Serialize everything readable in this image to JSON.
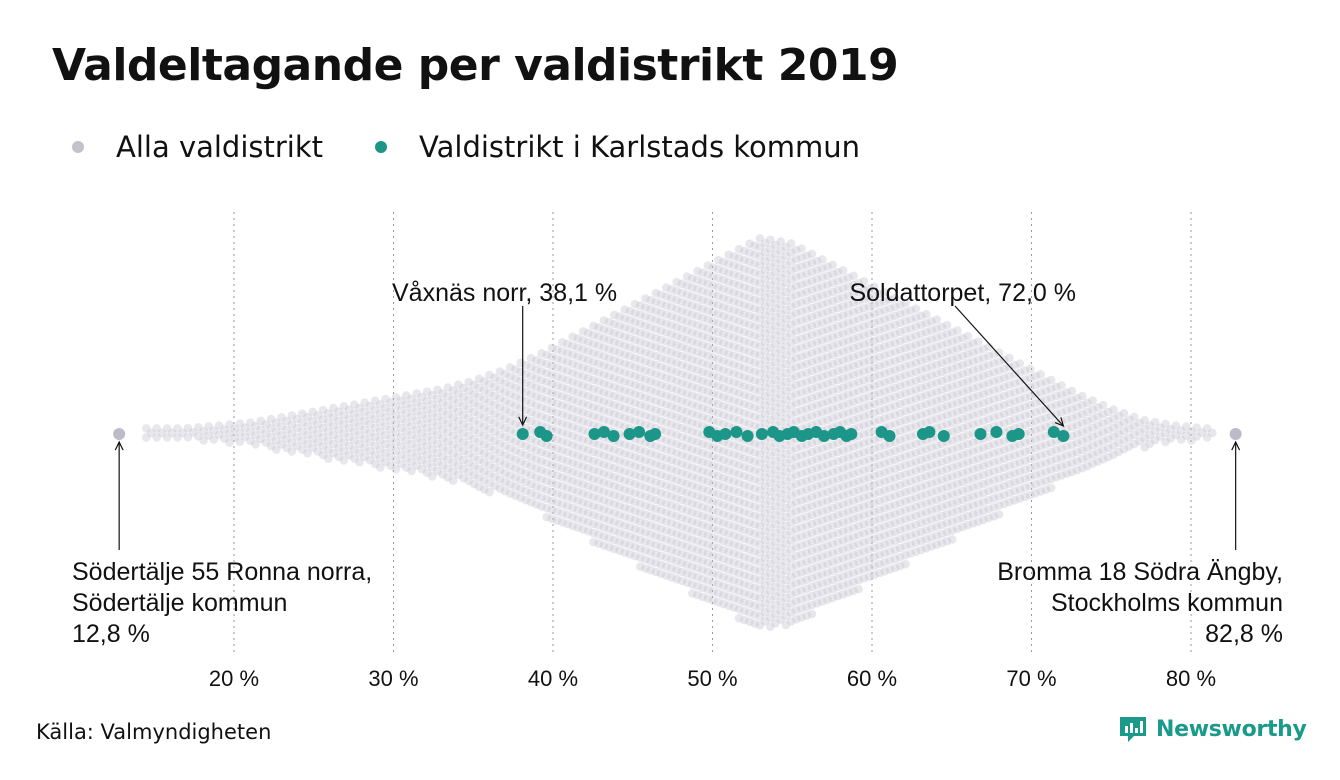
{
  "title": "Valdeltagande per valdistrikt 2019",
  "legend": [
    {
      "label": "Alla valdistrikt",
      "color": "#c3c1cc"
    },
    {
      "label": "Valdistrikt i Karlstads kommun",
      "color": "#1b9688"
    }
  ],
  "source": "Källa: Valmyndigheten",
  "brand": {
    "name": "Newsworthy",
    "color": "#1a9a8a"
  },
  "chart_data": {
    "type": "scatter",
    "subtype": "beeswarm",
    "xlabel": "",
    "ylabel": "",
    "xlim": [
      12,
      83.5
    ],
    "x_ticks": [
      20,
      30,
      40,
      50,
      60,
      70,
      80
    ],
    "x_tick_labels": [
      "20 %",
      "30 %",
      "40 %",
      "50 %",
      "60 %",
      "70 %",
      "80 %"
    ],
    "grid": "vertical dotted",
    "series": [
      {
        "name": "Alla valdistrikt",
        "color": "#c3c1cc",
        "distribution_bins": [
          {
            "x": 15,
            "count": 2
          },
          {
            "x": 17,
            "count": 2
          },
          {
            "x": 19,
            "count": 3
          },
          {
            "x": 21,
            "count": 4
          },
          {
            "x": 23,
            "count": 6
          },
          {
            "x": 25,
            "count": 8
          },
          {
            "x": 27,
            "count": 10
          },
          {
            "x": 29,
            "count": 12
          },
          {
            "x": 31,
            "count": 14
          },
          {
            "x": 33,
            "count": 16
          },
          {
            "x": 35,
            "count": 19
          },
          {
            "x": 37,
            "count": 23
          },
          {
            "x": 39,
            "count": 28
          },
          {
            "x": 41,
            "count": 34
          },
          {
            "x": 43,
            "count": 40
          },
          {
            "x": 45,
            "count": 46
          },
          {
            "x": 47,
            "count": 52
          },
          {
            "x": 49,
            "count": 58
          },
          {
            "x": 51,
            "count": 64
          },
          {
            "x": 53,
            "count": 70
          },
          {
            "x": 55,
            "count": 68
          },
          {
            "x": 57,
            "count": 62
          },
          {
            "x": 59,
            "count": 56
          },
          {
            "x": 61,
            "count": 50
          },
          {
            "x": 63,
            "count": 44
          },
          {
            "x": 65,
            "count": 38
          },
          {
            "x": 67,
            "count": 32
          },
          {
            "x": 69,
            "count": 26
          },
          {
            "x": 71,
            "count": 20
          },
          {
            "x": 73,
            "count": 14
          },
          {
            "x": 75,
            "count": 9
          },
          {
            "x": 77,
            "count": 5
          },
          {
            "x": 79,
            "count": 3
          },
          {
            "x": 81,
            "count": 2
          }
        ],
        "highlighted": [
          {
            "x": 12.8,
            "label_lines": [
              "Södertälje 55 Ronna norra,",
              "Södertälje kommun",
              "12,8 %"
            ]
          },
          {
            "x": 82.8,
            "label_lines": [
              "Bromma 18 Södra Ängby,",
              "Stockholms kommun",
              "82,8 %"
            ]
          }
        ]
      },
      {
        "name": "Valdistrikt i Karlstads kommun",
        "color": "#1b9688",
        "x": [
          38.1,
          39.2,
          39.6,
          42.6,
          43.2,
          43.8,
          44.8,
          45.4,
          46.1,
          46.4,
          49.8,
          50.3,
          50.8,
          51.5,
          52.2,
          53.1,
          53.8,
          54.2,
          54.7,
          55.1,
          55.6,
          56.0,
          56.5,
          57.0,
          57.6,
          58.0,
          58.4,
          58.7,
          60.6,
          61.1,
          63.2,
          63.6,
          64.5,
          66.8,
          67.8,
          68.8,
          69.2,
          71.4,
          72.0
        ]
      }
    ],
    "annotations": [
      {
        "x": 38.1,
        "text": "Våxnäs norr, 38,1 %"
      },
      {
        "x": 72.0,
        "text": "Soldattorpet, 72,0 %"
      }
    ]
  }
}
